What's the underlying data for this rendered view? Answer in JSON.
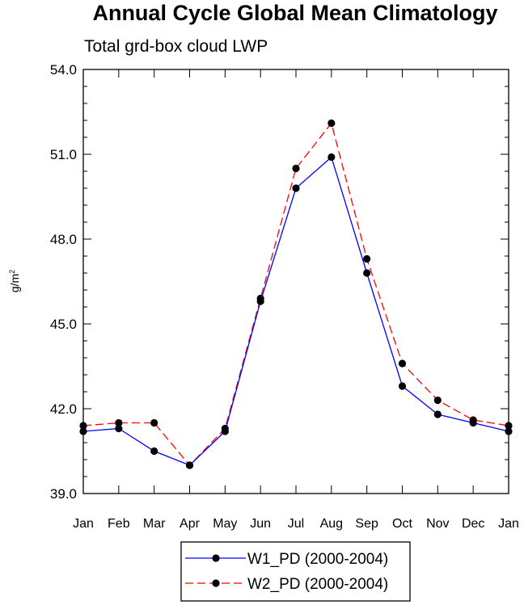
{
  "chart_data": {
    "type": "line",
    "title": "Annual Cycle Global Mean Climatology",
    "subtitle": "Total grd-box cloud LWP",
    "xlabel": "",
    "ylabel_main": "g/m",
    "ylabel_sup": "2",
    "categories": [
      "Jan",
      "Feb",
      "Mar",
      "Apr",
      "May",
      "Jun",
      "Jul",
      "Aug",
      "Sep",
      "Oct",
      "Nov",
      "Dec",
      "Jan"
    ],
    "ylim": [
      39.0,
      54.0
    ],
    "yticks": [
      39.0,
      42.0,
      45.0,
      48.0,
      51.0,
      54.0
    ],
    "ytick_labels": [
      "39.0",
      "42.0",
      "45.0",
      "48.0",
      "51.0",
      "54.0"
    ],
    "legend_position": "bottom-center",
    "series": [
      {
        "name": "W1_PD (2000-2004)",
        "color": "#0000ff",
        "dash": "solid",
        "values": [
          41.2,
          41.3,
          40.5,
          40.0,
          41.2,
          45.8,
          49.8,
          50.9,
          46.8,
          42.8,
          41.8,
          41.5,
          41.2
        ]
      },
      {
        "name": "W2_PD (2000-2004)",
        "color": "#ff0000",
        "dash": "dashed",
        "values": [
          41.4,
          41.5,
          41.5,
          40.0,
          41.3,
          45.9,
          50.5,
          52.1,
          47.3,
          43.6,
          42.3,
          41.6,
          41.4
        ]
      }
    ]
  }
}
